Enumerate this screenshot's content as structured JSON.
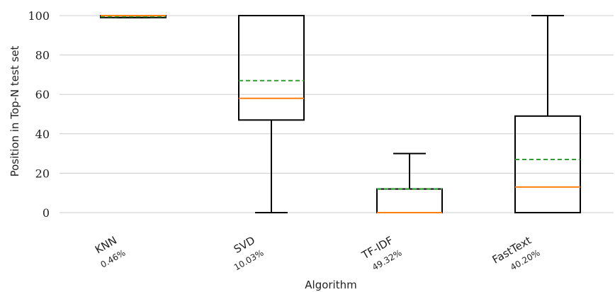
{
  "chart_data": {
    "type": "box",
    "xlabel": "Algorithm",
    "ylabel": "Position in Top-N test set",
    "ylim": [
      0,
      105
    ],
    "yticks": [
      0,
      20,
      40,
      60,
      80,
      100
    ],
    "grid": "horizontal",
    "categories": [
      {
        "label": "KNN",
        "share": "0.46%",
        "whisker_low": 99,
        "q1": 99,
        "median": 100,
        "mean": 99.5,
        "q3": 100,
        "whisker_high": 100
      },
      {
        "label": "SVD",
        "share": "10.03%",
        "whisker_low": 0,
        "q1": 47,
        "median": 58,
        "mean": 67,
        "q3": 100,
        "whisker_high": 100
      },
      {
        "label": "TF-IDF",
        "share": "49.32%",
        "whisker_low": 0,
        "q1": 0,
        "median": 0,
        "mean": 12,
        "q3": 12,
        "whisker_high": 30
      },
      {
        "label": "FastText",
        "share": "40.20%",
        "whisker_low": 0,
        "q1": 0,
        "median": 13,
        "mean": 27,
        "q3": 49,
        "whisker_high": 100
      }
    ],
    "colors": {
      "box": "#000000",
      "median": "#ff7f0e",
      "mean": "#2ca02c",
      "grid": "#cccccc"
    }
  }
}
